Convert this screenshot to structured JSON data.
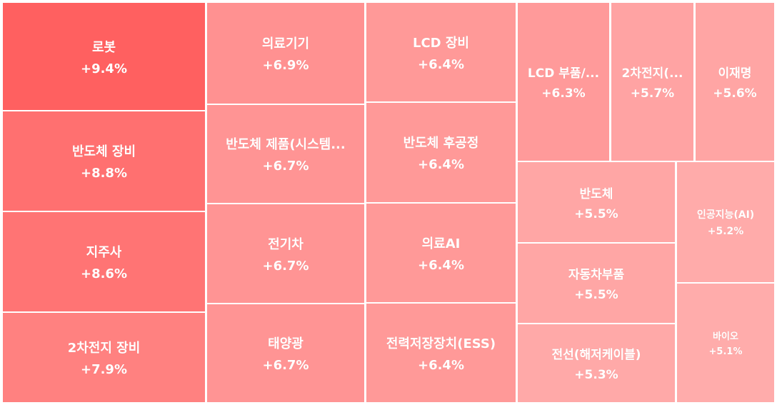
{
  "chart_data": {
    "type": "treemap",
    "value_suffix": "%",
    "color_scale": {
      "high": "#ff6060",
      "low": "#ffacab"
    },
    "items": [
      {
        "name": "로봇",
        "value": 9.4,
        "label": "+9.4%"
      },
      {
        "name": "반도체 장비",
        "value": 8.8,
        "label": "+8.8%"
      },
      {
        "name": "지주사",
        "value": 8.6,
        "label": "+8.6%"
      },
      {
        "name": "2차전지 장비",
        "value": 7.9,
        "label": "+7.9%"
      },
      {
        "name": "의료기기",
        "value": 6.9,
        "label": "+6.9%"
      },
      {
        "name": "반도체 제품(시스템...",
        "value": 6.7,
        "label": "+6.7%"
      },
      {
        "name": "전기차",
        "value": 6.7,
        "label": "+6.7%"
      },
      {
        "name": "태양광",
        "value": 6.7,
        "label": "+6.7%"
      },
      {
        "name": "LCD 장비",
        "value": 6.4,
        "label": "+6.4%"
      },
      {
        "name": "반도체 후공정",
        "value": 6.4,
        "label": "+6.4%"
      },
      {
        "name": "의료AI",
        "value": 6.4,
        "label": "+6.4%"
      },
      {
        "name": "전력저장장치(ESS)",
        "value": 6.4,
        "label": "+6.4%"
      },
      {
        "name": "LCD 부품/...",
        "value": 6.3,
        "label": "+6.3%"
      },
      {
        "name": "2차전지(...",
        "value": 5.7,
        "label": "+5.7%"
      },
      {
        "name": "이재명",
        "value": 5.6,
        "label": "+5.6%"
      },
      {
        "name": "반도체",
        "value": 5.5,
        "label": "+5.5%"
      },
      {
        "name": "자동차부품",
        "value": 5.5,
        "label": "+5.5%"
      },
      {
        "name": "전선(해저케이블)",
        "value": 5.3,
        "label": "+5.3%"
      },
      {
        "name": "인공지능(AI)",
        "value": 5.2,
        "label": "+5.2%"
      },
      {
        "name": "바이오",
        "value": 5.1,
        "label": "+5.1%"
      }
    ]
  }
}
